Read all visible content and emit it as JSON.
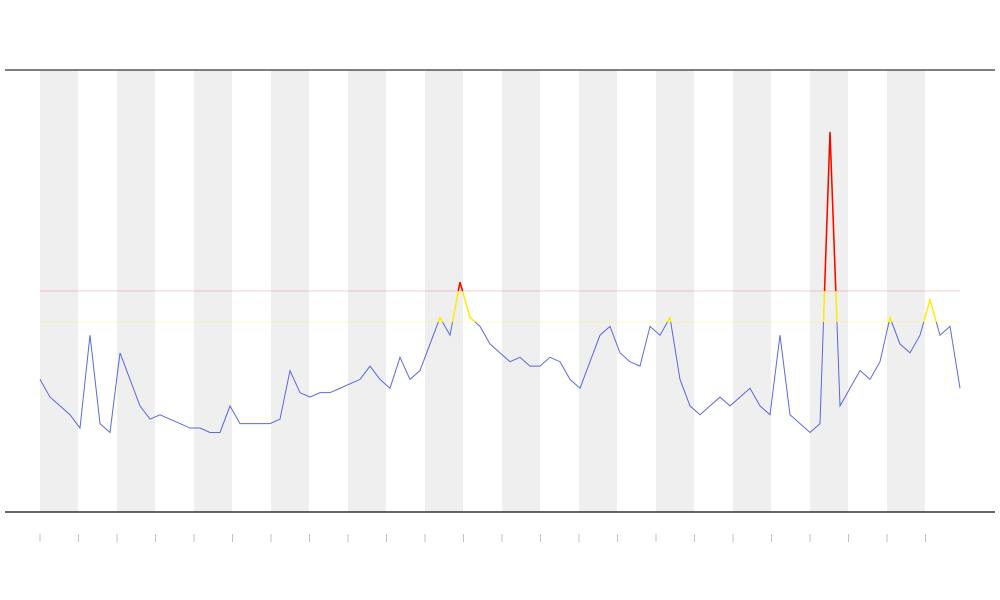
{
  "chart_data": {
    "type": "line",
    "ylim": [
      0,
      100
    ],
    "series": [
      {
        "color": "#3344dd",
        "values": [
          30,
          26,
          24,
          22,
          19,
          40,
          20,
          18,
          36,
          30,
          24,
          21,
          22,
          21,
          20,
          19,
          19,
          18,
          18,
          24,
          20,
          20,
          20,
          20,
          21,
          32,
          27,
          26,
          27,
          27,
          28,
          29,
          30,
          33,
          30,
          28,
          35,
          30,
          32,
          38,
          44,
          40,
          52,
          44,
          42,
          38,
          36,
          34,
          35,
          33,
          33,
          35,
          34,
          30,
          28,
          34,
          40,
          42,
          36,
          34,
          33,
          42,
          40,
          44,
          30,
          24,
          22,
          24,
          26,
          24,
          26,
          28,
          24,
          22,
          40,
          22,
          20,
          18,
          20,
          86,
          24,
          28,
          32,
          30,
          34,
          44,
          38,
          36,
          40,
          48,
          40,
          42,
          28
        ]
      }
    ],
    "thresholds": [
      {
        "value": 43,
        "color": "#ffee00"
      },
      {
        "value": 50,
        "color": "#ff0000"
      }
    ]
  }
}
